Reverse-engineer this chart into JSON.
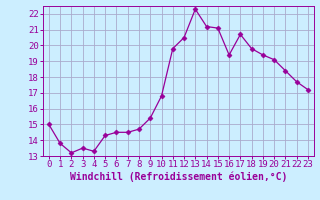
{
  "x": [
    0,
    1,
    2,
    3,
    4,
    5,
    6,
    7,
    8,
    9,
    10,
    11,
    12,
    13,
    14,
    15,
    16,
    17,
    18,
    19,
    20,
    21,
    22,
    23
  ],
  "y": [
    15.0,
    13.8,
    13.2,
    13.5,
    13.3,
    14.3,
    14.5,
    14.5,
    14.7,
    15.4,
    16.8,
    19.8,
    20.5,
    22.3,
    21.2,
    21.1,
    19.4,
    20.7,
    19.8,
    19.4,
    19.1,
    18.4,
    17.7,
    17.2
  ],
  "line_color": "#990099",
  "marker": "D",
  "marker_size": 2.5,
  "bg_color": "#cceeff",
  "grid_color": "#aaaacc",
  "xlabel": "Windchill (Refroidissement éolien,°C)",
  "ylim": [
    13,
    22.5
  ],
  "xlim": [
    -0.5,
    23.5
  ],
  "yticks": [
    13,
    14,
    15,
    16,
    17,
    18,
    19,
    20,
    21,
    22
  ],
  "xticks": [
    0,
    1,
    2,
    3,
    4,
    5,
    6,
    7,
    8,
    9,
    10,
    11,
    12,
    13,
    14,
    15,
    16,
    17,
    18,
    19,
    20,
    21,
    22,
    23
  ],
  "xlabel_fontsize": 7.0,
  "tick_fontsize": 6.5
}
